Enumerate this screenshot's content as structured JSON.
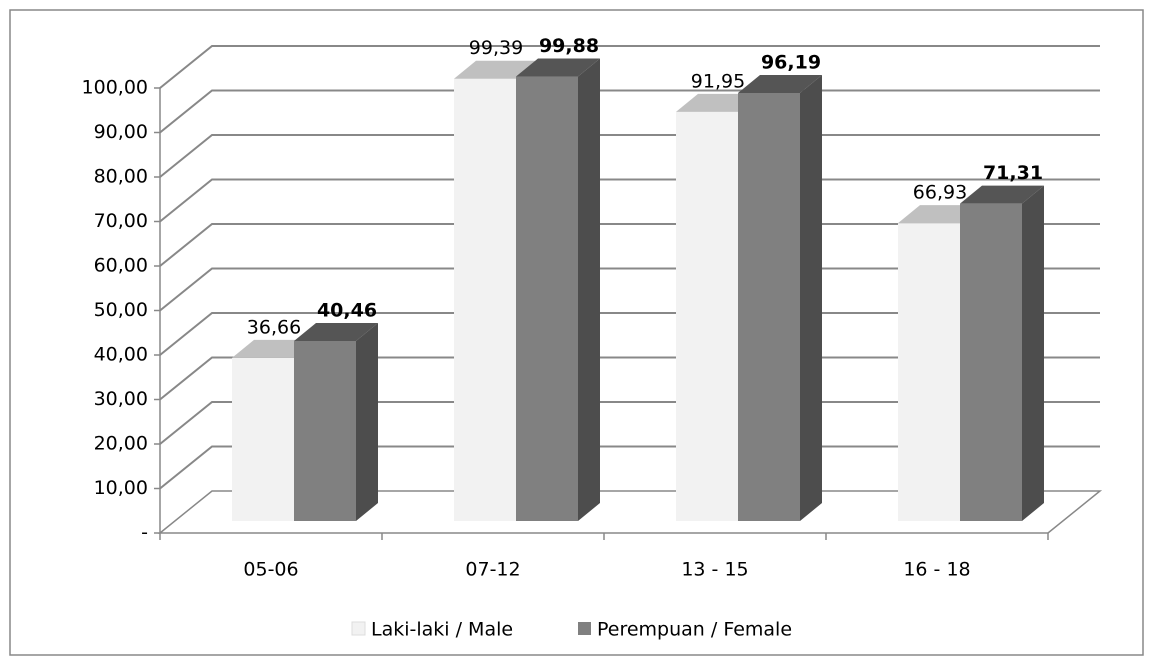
{
  "chart_data": {
    "type": "bar3d",
    "categories": [
      "05-06",
      "07-12",
      "13 - 15",
      "16 - 18"
    ],
    "series": [
      {
        "name": "Laki-laki / Male",
        "color": "#f2f2f2",
        "values": [
          36.66,
          99.39,
          91.95,
          66.93
        ],
        "value_labels": [
          "36,66",
          "99,39",
          "91,95",
          "66,93"
        ]
      },
      {
        "name": "Perempuan / Female",
        "color": "#808080",
        "values": [
          40.46,
          99.88,
          96.19,
          71.31
        ],
        "value_labels": [
          "40,46",
          "99,88",
          "96,19",
          "71,31"
        ]
      }
    ],
    "ylim": [
      0,
      100
    ],
    "yticks": [
      {
        "value": 0,
        "label": "-"
      },
      {
        "value": 10,
        "label": "10,00"
      },
      {
        "value": 20,
        "label": "20,00"
      },
      {
        "value": 30,
        "label": "30,00"
      },
      {
        "value": 40,
        "label": "40,00"
      },
      {
        "value": 50,
        "label": "50,00"
      },
      {
        "value": 60,
        "label": "60,00"
      },
      {
        "value": 70,
        "label": "70,00"
      },
      {
        "value": 80,
        "label": "80,00"
      },
      {
        "value": 90,
        "label": "90,00"
      },
      {
        "value": 100,
        "label": "100,00"
      }
    ],
    "grid": true,
    "legend": "bottom"
  }
}
